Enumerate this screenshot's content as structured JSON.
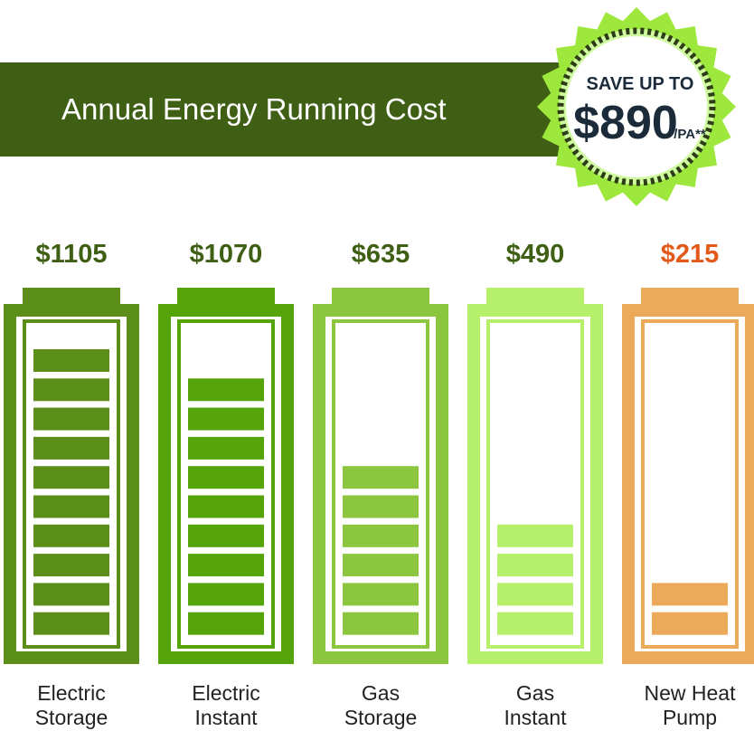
{
  "title": "Annual Energy Running Cost",
  "badge": {
    "line1": "SAVE UP TO",
    "amount": "$890",
    "suffix": "/PA**"
  },
  "colors": {
    "banner": "#3f5f14",
    "badge_outer": "#9ee83e",
    "badge_inner": "#cffaa0",
    "badge_ring": "#2d3e16",
    "badge_text": "#1c2b3a",
    "value_text_default": "#3f5f14"
  },
  "chart_data": {
    "type": "bar",
    "categories": [
      "Electric Storage",
      "Electric Instant",
      "Gas Storage",
      "Gas Instant",
      "New Heat Pump"
    ],
    "values": [
      1105,
      1070,
      635,
      490,
      215
    ],
    "value_labels": [
      "$1105",
      "$1070",
      "$635",
      "$490",
      "$215"
    ],
    "segments_filled": [
      10,
      9,
      6,
      4,
      2
    ],
    "segments_total": 10,
    "colors": [
      "#5c8e1a",
      "#55a50a",
      "#8cc63f",
      "#b6ef6a",
      "#eda95a"
    ],
    "label_colors": [
      "#3f5f14",
      "#3f5f14",
      "#3f5f14",
      "#3f5f14",
      "#e15a1a"
    ]
  }
}
